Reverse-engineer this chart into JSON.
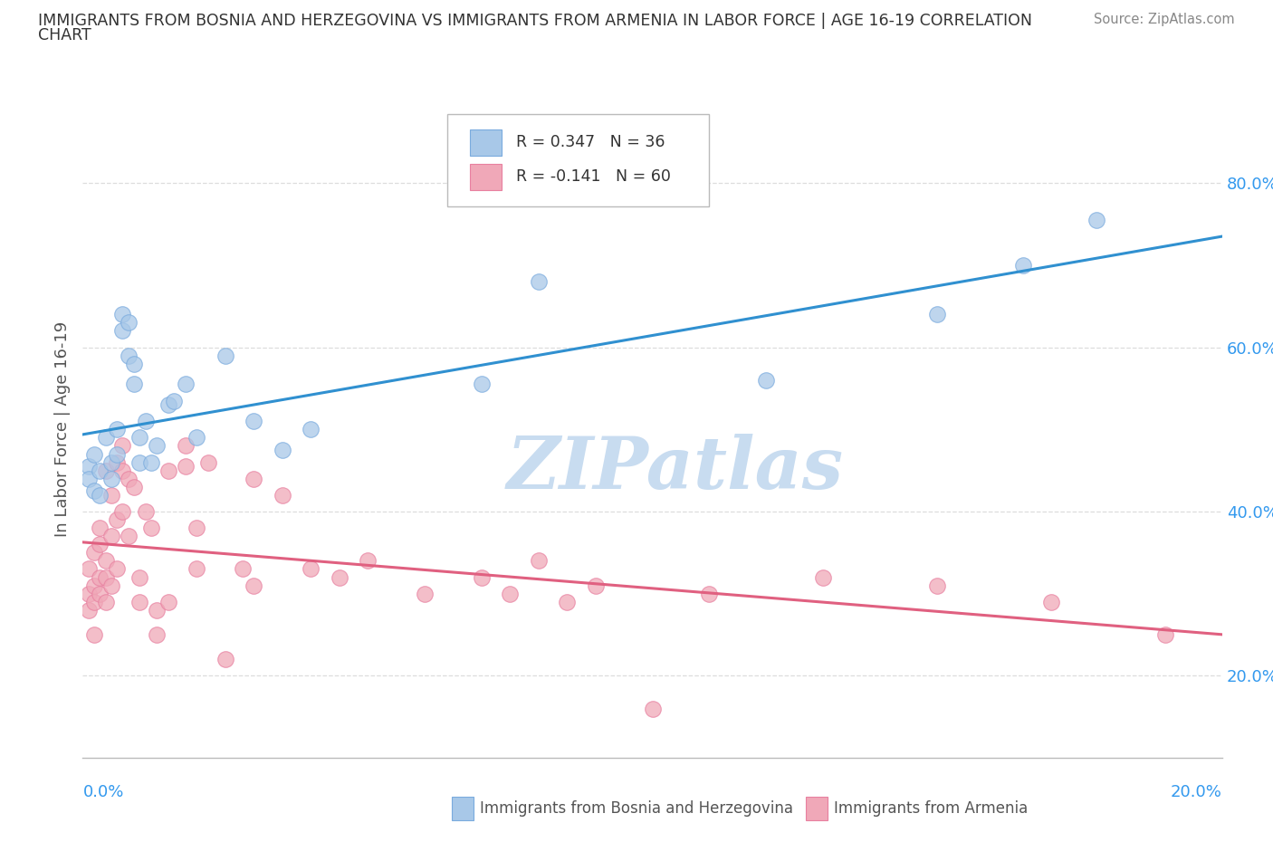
{
  "title_line1": "IMMIGRANTS FROM BOSNIA AND HERZEGOVINA VS IMMIGRANTS FROM ARMENIA IN LABOR FORCE | AGE 16-19 CORRELATION",
  "title_line2": "CHART",
  "source": "Source: ZipAtlas.com",
  "ylabel": "In Labor Force | Age 16-19",
  "ytick_vals": [
    0.2,
    0.4,
    0.6,
    0.8
  ],
  "ytick_labels": [
    "20.0%",
    "40.0%",
    "60.0%",
    "80.0%"
  ],
  "xtick_labels": [
    "0.0%",
    "20.0%"
  ],
  "xlim": [
    0.0,
    0.2
  ],
  "ylim": [
    0.1,
    0.9
  ],
  "bosnia_R": 0.347,
  "bosnia_N": 36,
  "armenia_R": -0.141,
  "armenia_N": 60,
  "bosnia_color": "#A8C8E8",
  "armenia_color": "#F0A8B8",
  "bosnia_line_color": "#3090D0",
  "armenia_line_color": "#E06080",
  "bosnia_edge_color": "#7AABDE",
  "armenia_edge_color": "#E880A0",
  "watermark_color": "#C8DCF0",
  "legend_border_color": "#BBBBBB",
  "grid_color": "#DDDDDD",
  "axis_color": "#BBBBBB",
  "title_color": "#333333",
  "source_color": "#888888",
  "ytick_color": "#3399EE",
  "ylabel_color": "#555555",
  "legend_text_color": "#333333",
  "bottom_legend_text_color": "#555555",
  "bosnia_x": [
    0.001,
    0.001,
    0.002,
    0.002,
    0.003,
    0.003,
    0.004,
    0.005,
    0.005,
    0.006,
    0.006,
    0.007,
    0.007,
    0.008,
    0.008,
    0.009,
    0.009,
    0.01,
    0.01,
    0.011,
    0.012,
    0.013,
    0.015,
    0.016,
    0.018,
    0.02,
    0.025,
    0.03,
    0.035,
    0.04,
    0.07,
    0.08,
    0.12,
    0.15,
    0.165,
    0.178
  ],
  "bosnia_y": [
    0.455,
    0.44,
    0.425,
    0.47,
    0.45,
    0.42,
    0.49,
    0.44,
    0.46,
    0.5,
    0.47,
    0.62,
    0.64,
    0.59,
    0.63,
    0.58,
    0.555,
    0.46,
    0.49,
    0.51,
    0.46,
    0.48,
    0.53,
    0.535,
    0.555,
    0.49,
    0.59,
    0.51,
    0.475,
    0.5,
    0.555,
    0.68,
    0.56,
    0.64,
    0.7,
    0.755
  ],
  "armenia_x": [
    0.001,
    0.001,
    0.001,
    0.002,
    0.002,
    0.002,
    0.002,
    0.003,
    0.003,
    0.003,
    0.003,
    0.004,
    0.004,
    0.004,
    0.004,
    0.005,
    0.005,
    0.005,
    0.006,
    0.006,
    0.006,
    0.007,
    0.007,
    0.007,
    0.008,
    0.008,
    0.009,
    0.01,
    0.01,
    0.011,
    0.012,
    0.013,
    0.013,
    0.015,
    0.015,
    0.018,
    0.018,
    0.02,
    0.02,
    0.022,
    0.025,
    0.028,
    0.03,
    0.03,
    0.035,
    0.04,
    0.045,
    0.05,
    0.06,
    0.07,
    0.075,
    0.08,
    0.085,
    0.09,
    0.1,
    0.11,
    0.13,
    0.15,
    0.17,
    0.19
  ],
  "armenia_y": [
    0.33,
    0.3,
    0.28,
    0.35,
    0.31,
    0.29,
    0.25,
    0.38,
    0.36,
    0.32,
    0.3,
    0.34,
    0.32,
    0.29,
    0.45,
    0.31,
    0.37,
    0.42,
    0.33,
    0.39,
    0.46,
    0.4,
    0.45,
    0.48,
    0.44,
    0.37,
    0.43,
    0.32,
    0.29,
    0.4,
    0.38,
    0.28,
    0.25,
    0.29,
    0.45,
    0.455,
    0.48,
    0.38,
    0.33,
    0.46,
    0.22,
    0.33,
    0.31,
    0.44,
    0.42,
    0.33,
    0.32,
    0.34,
    0.3,
    0.32,
    0.3,
    0.34,
    0.29,
    0.31,
    0.16,
    0.3,
    0.32,
    0.31,
    0.29,
    0.25
  ]
}
